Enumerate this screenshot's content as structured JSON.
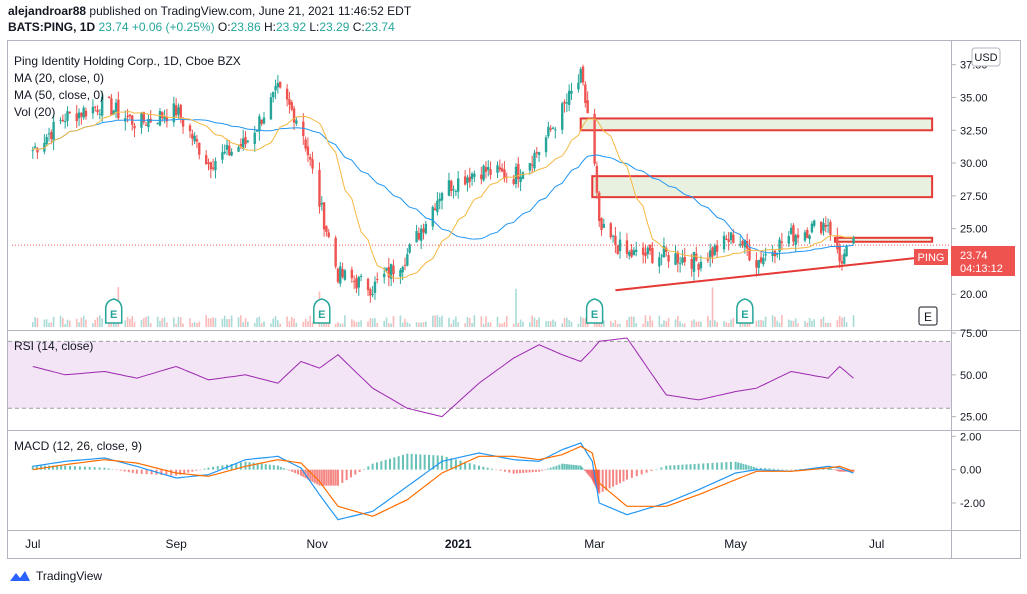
{
  "header": {
    "author": "alejandroar88",
    "published_text": "published on TradingView.com, June 21, 2021 11:46:52 EDT",
    "symbol": "BATS:PING, 1D",
    "last": "23.74",
    "change": "+0.06 (+0.25%)",
    "o_label": "O:",
    "o": "23.86",
    "h_label": "H:",
    "h": "23.92",
    "l_label": "L:",
    "l": "23.29",
    "c_label": "C:",
    "c": "23.74"
  },
  "legend": {
    "title": "Ping Identity Holding Corp., 1D, Cboe BZX",
    "ma20": "MA (20, close, 0)",
    "ma50": "MA (50, close, 0)",
    "vol": "Vol (20)"
  },
  "currency": "USD",
  "price_tag": {
    "symbol": "PING",
    "price": "23.74",
    "countdown": "04:13:12"
  },
  "earnings_marker": "E",
  "rsi_label": "RSI (14, close)",
  "macd_label": "MACD (12, 26, close, 9)",
  "brand": "TradingView",
  "colors": {
    "up": "#26a69a",
    "down": "#ef5350",
    "ma20": "#f5b841",
    "ma50": "#2196f3",
    "rsi": "#9c27b0",
    "macd": "#2196f3",
    "signal": "#ff6d00",
    "annotation": "#e53935"
  },
  "chart_data": [
    {
      "type": "candlestick",
      "title": "Ping Identity Holding Corp., 1D, Cboe BZX",
      "ylabel": "USD",
      "ylim": [
        17.5,
        39
      ],
      "y_ticks": [
        "37.50",
        "35.00",
        "32.50",
        "30.00",
        "27.50",
        "25.00",
        "22.50",
        "20.00"
      ],
      "x_ticks": [
        "Jul",
        "Sep",
        "Nov",
        "2021",
        "Mar",
        "May",
        "Jul"
      ],
      "close_series": [
        {
          "date": "2020-07-01",
          "close": 31.0
        },
        {
          "date": "2020-07-15",
          "close": 33.5
        },
        {
          "date": "2020-08-01",
          "close": 34.5
        },
        {
          "date": "2020-08-15",
          "close": 33.0
        },
        {
          "date": "2020-09-01",
          "close": 34.0
        },
        {
          "date": "2020-09-15",
          "close": 30.0
        },
        {
          "date": "2020-10-01",
          "close": 31.5
        },
        {
          "date": "2020-10-15",
          "close": 35.5
        },
        {
          "date": "2020-10-25",
          "close": 33.0
        },
        {
          "date": "2020-11-02",
          "close": 27.0
        },
        {
          "date": "2020-11-10",
          "close": 21.5
        },
        {
          "date": "2020-11-25",
          "close": 20.5
        },
        {
          "date": "2020-12-10",
          "close": 23.0
        },
        {
          "date": "2020-12-25",
          "close": 28.0
        },
        {
          "date": "2021-01-10",
          "close": 29.5
        },
        {
          "date": "2021-01-25",
          "close": 29.0
        },
        {
          "date": "2021-02-05",
          "close": 31.0
        },
        {
          "date": "2021-02-15",
          "close": 34.0
        },
        {
          "date": "2021-02-23",
          "close": 36.5
        },
        {
          "date": "2021-02-28",
          "close": 32.0
        },
        {
          "date": "2021-03-03",
          "close": 25.0
        },
        {
          "date": "2021-03-15",
          "close": 23.0
        },
        {
          "date": "2021-04-01",
          "close": 23.0
        },
        {
          "date": "2021-04-15",
          "close": 22.5
        },
        {
          "date": "2021-05-01",
          "close": 24.5
        },
        {
          "date": "2021-05-10",
          "close": 22.5
        },
        {
          "date": "2021-05-25",
          "close": 24.5
        },
        {
          "date": "2021-06-10",
          "close": 25.5
        },
        {
          "date": "2021-06-15",
          "close": 22.5
        },
        {
          "date": "2021-06-21",
          "close": 23.74
        }
      ],
      "annotations": [
        {
          "type": "zone",
          "from": "2021-02-23",
          "to": "2021-07-25",
          "ylim": [
            32.5,
            33.4
          ]
        },
        {
          "type": "zone",
          "from": "2021-02-28",
          "to": "2021-07-25",
          "ylim": [
            27.4,
            29.0
          ]
        },
        {
          "type": "zone",
          "from": "2021-06-13",
          "to": "2021-07-25",
          "ylim": [
            24.0,
            24.3
          ]
        },
        {
          "type": "trendline",
          "from": {
            "date": "2021-03-10",
            "value": 20.3
          },
          "to": {
            "date": "2021-07-20",
            "value": 22.8
          }
        }
      ],
      "earnings_dates": [
        "2020-08-05",
        "2020-11-03",
        "2021-03-01",
        "2021-05-05"
      ]
    },
    {
      "type": "line",
      "title": "RSI (14, close)",
      "ylim": [
        20,
        75
      ],
      "y_ticks": [
        "75.00",
        "50.00",
        "25.00"
      ],
      "bands": [
        70,
        30
      ],
      "series": [
        {
          "name": "RSI",
          "values": [
            55,
            50,
            52,
            48,
            55,
            47,
            50,
            45,
            58,
            54,
            62,
            42,
            30,
            25,
            45,
            60,
            68,
            62,
            58,
            65,
            70,
            72,
            38,
            35,
            40,
            42,
            52,
            48,
            55,
            48
          ]
        }
      ]
    },
    {
      "type": "line",
      "title": "MACD (12, 26, close, 9)",
      "ylim": [
        -3.5,
        2.2
      ],
      "y_ticks": [
        "2.00",
        "0.00",
        "-2.00"
      ],
      "series": [
        {
          "name": "MACD",
          "values": [
            0.2,
            0.5,
            0.7,
            0.2,
            -0.5,
            -0.3,
            0.6,
            0.8,
            0.1,
            -1.5,
            -3.0,
            -2.5,
            -1.0,
            0.5,
            1.0,
            0.6,
            0.5,
            1.2,
            1.6,
            0.5,
            -2.0,
            -2.7,
            -2.0,
            -1.2,
            -0.2,
            0.0,
            -0.1,
            0.2,
            0.1,
            -0.2
          ]
        },
        {
          "name": "Signal",
          "values": [
            0.0,
            0.3,
            0.6,
            0.4,
            -0.2,
            -0.4,
            0.2,
            0.6,
            0.4,
            -0.7,
            -2.2,
            -2.8,
            -1.8,
            -0.2,
            0.8,
            0.8,
            0.6,
            0.9,
            1.4,
            1.0,
            -0.8,
            -2.2,
            -2.2,
            -1.5,
            -0.6,
            -0.1,
            -0.1,
            0.1,
            0.2,
            -0.1
          ]
        }
      ]
    }
  ]
}
